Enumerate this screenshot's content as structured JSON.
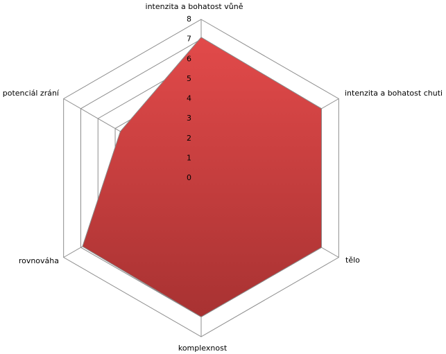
{
  "chart_data": {
    "type": "radar",
    "categories": [
      "intenzita a bohatost vůně",
      "intenzita a bohatost chuti",
      "tělo",
      "komplexnost",
      "rovnováha",
      "potenciál zrání"
    ],
    "values": [
      7.1,
      7,
      7,
      7,
      6.9,
      4.7
    ],
    "color": "#d44444",
    "ylim": [
      0,
      8
    ],
    "yticks": [
      0,
      1,
      2,
      3,
      4,
      5,
      6,
      7,
      8
    ],
    "grid": true
  }
}
